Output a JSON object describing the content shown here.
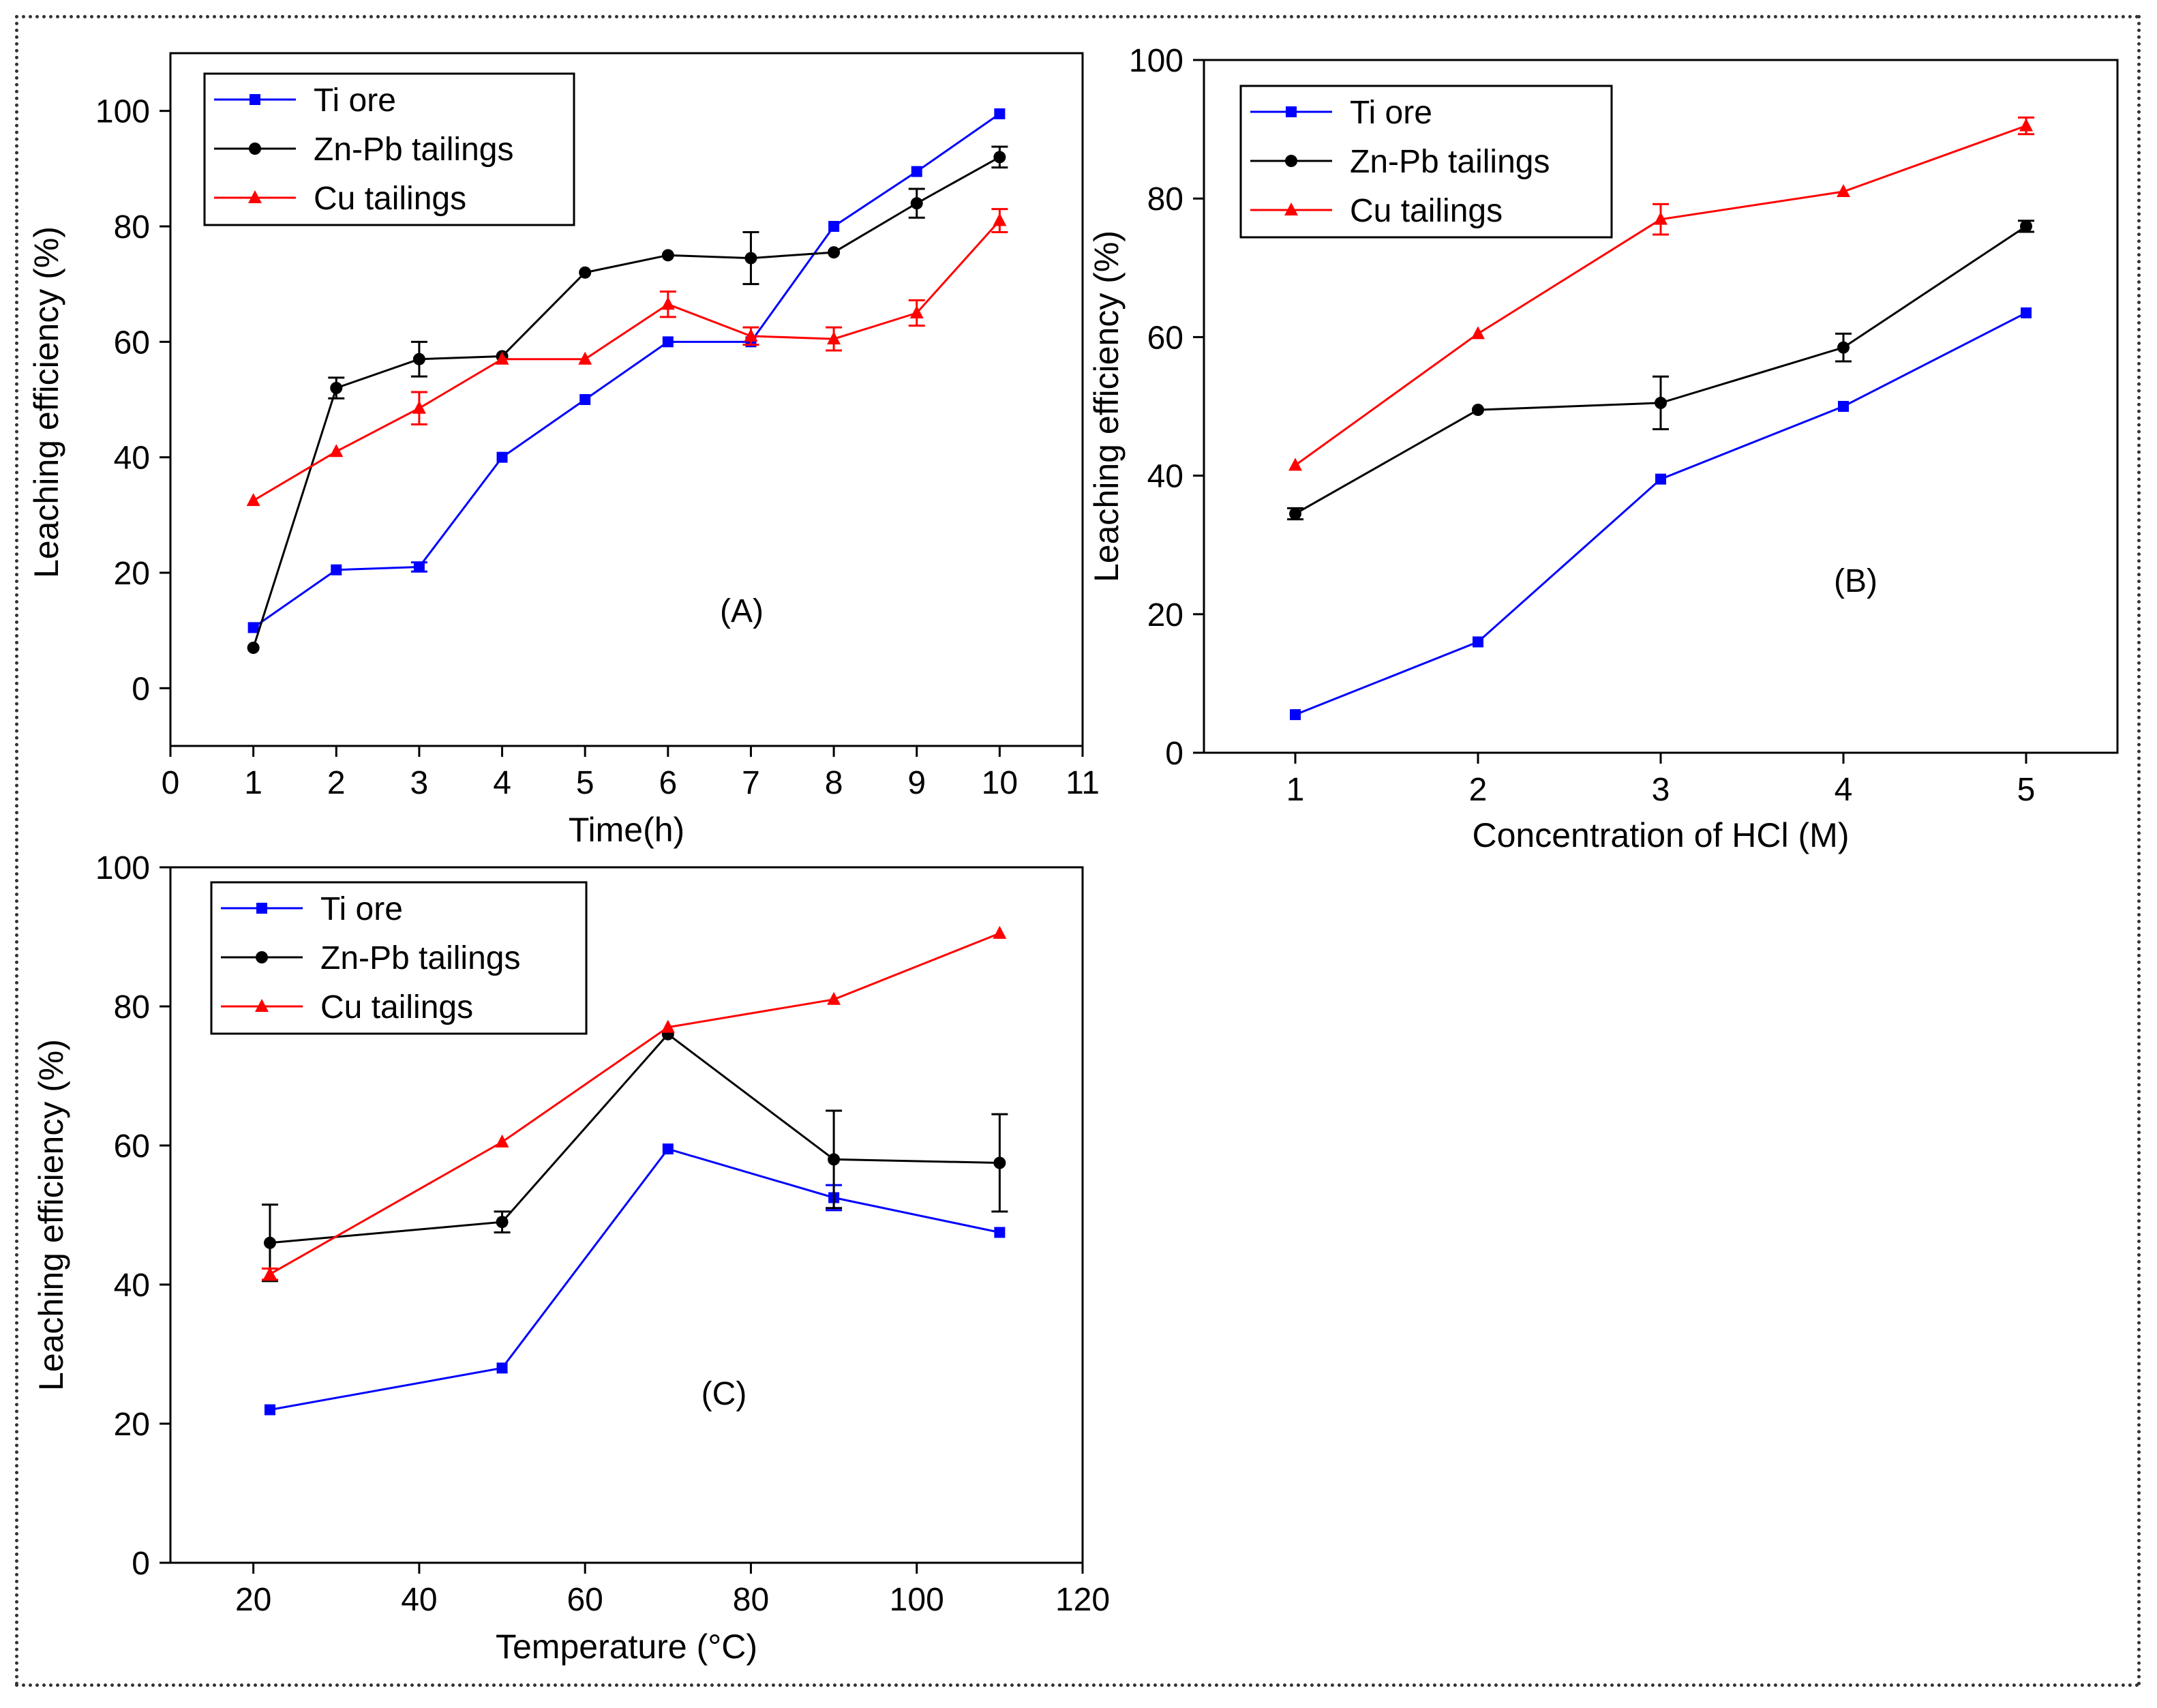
{
  "colors": {
    "ti": "#0000ff",
    "znpb": "#000000",
    "cu": "#ff0000"
  },
  "chart_data": [
    {
      "panel_label": "(A)",
      "type": "line",
      "xlabel": "Time(h)",
      "ylabel": "Leaching efficiency (%)",
      "xlim": [
        0,
        11
      ],
      "ylim": [
        -10,
        110
      ],
      "xticks": [
        "0",
        "1",
        "2",
        "3",
        "4",
        "5",
        "6",
        "7",
        "8",
        "9",
        "10",
        "11"
      ],
      "yticks": [
        "0",
        "20",
        "40",
        "60",
        "80",
        "100"
      ],
      "legend_position": "top-left",
      "x": [
        1,
        2,
        3,
        4,
        5,
        6,
        7,
        8,
        9,
        10
      ],
      "series": [
        {
          "name": "Ti ore",
          "color": "#0000ff",
          "marker": "square",
          "values": [
            10.5,
            20.5,
            21,
            40,
            50,
            60,
            60,
            80,
            89.5,
            99.5
          ],
          "errors": [
            0,
            0,
            0.8,
            0,
            0,
            0,
            0,
            0,
            0,
            0
          ]
        },
        {
          "name": "Zn-Pb tailings",
          "color": "#000000",
          "marker": "circle",
          "values": [
            7,
            52,
            57,
            57.5,
            72,
            75,
            74.5,
            75.5,
            84,
            92
          ],
          "errors": [
            0,
            1.8,
            3,
            0,
            0,
            0,
            4.5,
            0,
            2.5,
            1.8
          ]
        },
        {
          "name": "Cu tailings",
          "color": "#ff0000",
          "marker": "triangle",
          "values": [
            32.5,
            41,
            48.5,
            57,
            57,
            66.5,
            61,
            60.5,
            65,
            81
          ],
          "errors": [
            0,
            0,
            2.8,
            0,
            0,
            2.2,
            1.5,
            2,
            2.2,
            2
          ]
        }
      ]
    },
    {
      "panel_label": "(B)",
      "type": "line",
      "xlabel": "Concentration of HCl (M)",
      "ylabel": "Leaching efficiency (%)",
      "xlim": [
        0.5,
        5.5
      ],
      "ylim": [
        0,
        100
      ],
      "xticks": [
        "1",
        "2",
        "3",
        "4",
        "5"
      ],
      "yticks": [
        "0",
        "20",
        "40",
        "60",
        "80",
        "100"
      ],
      "legend_position": "top-left",
      "x": [
        1,
        2,
        3,
        4,
        5
      ],
      "series": [
        {
          "name": "Ti ore",
          "color": "#0000ff",
          "marker": "square",
          "values": [
            5.5,
            16,
            39.5,
            50,
            63.5
          ],
          "errors": [
            0,
            0,
            0,
            0,
            0
          ]
        },
        {
          "name": "Zn-Pb tailings",
          "color": "#000000",
          "marker": "circle",
          "values": [
            34.5,
            49.5,
            50.5,
            58.5,
            76
          ],
          "errors": [
            0.8,
            0,
            3.8,
            2,
            0.8
          ]
        },
        {
          "name": "Cu tailings",
          "color": "#ff0000",
          "marker": "triangle",
          "values": [
            41.5,
            60.5,
            77,
            81,
            90.5
          ],
          "errors": [
            0,
            0,
            2.2,
            0,
            1.2
          ]
        }
      ]
    },
    {
      "panel_label": "(C)",
      "type": "line",
      "xlabel": "Temperature (°C)",
      "ylabel": "Leaching efficiency (%)",
      "xlim": [
        10,
        120
      ],
      "ylim": [
        0,
        100
      ],
      "xticks": [
        "20",
        "40",
        "60",
        "80",
        "100",
        "120"
      ],
      "yticks": [
        "0",
        "20",
        "40",
        "60",
        "80",
        "100"
      ],
      "legend_position": "top-left",
      "x": [
        22,
        50,
        70,
        90,
        110
      ],
      "series": [
        {
          "name": "Ti ore",
          "color": "#0000ff",
          "marker": "square",
          "values": [
            22,
            28,
            59.5,
            52.5,
            47.5
          ],
          "errors": [
            0,
            0,
            0,
            1.8,
            0
          ]
        },
        {
          "name": "Zn-Pb tailings",
          "color": "#000000",
          "marker": "circle",
          "values": [
            46,
            49,
            76,
            58,
            57.5
          ],
          "errors": [
            5.5,
            1.5,
            0,
            7,
            7
          ]
        },
        {
          "name": "Cu tailings",
          "color": "#ff0000",
          "marker": "triangle",
          "values": [
            41.5,
            60.5,
            77,
            81,
            90.5
          ],
          "errors": [
            0.8,
            0,
            0,
            0,
            0
          ]
        }
      ]
    }
  ]
}
